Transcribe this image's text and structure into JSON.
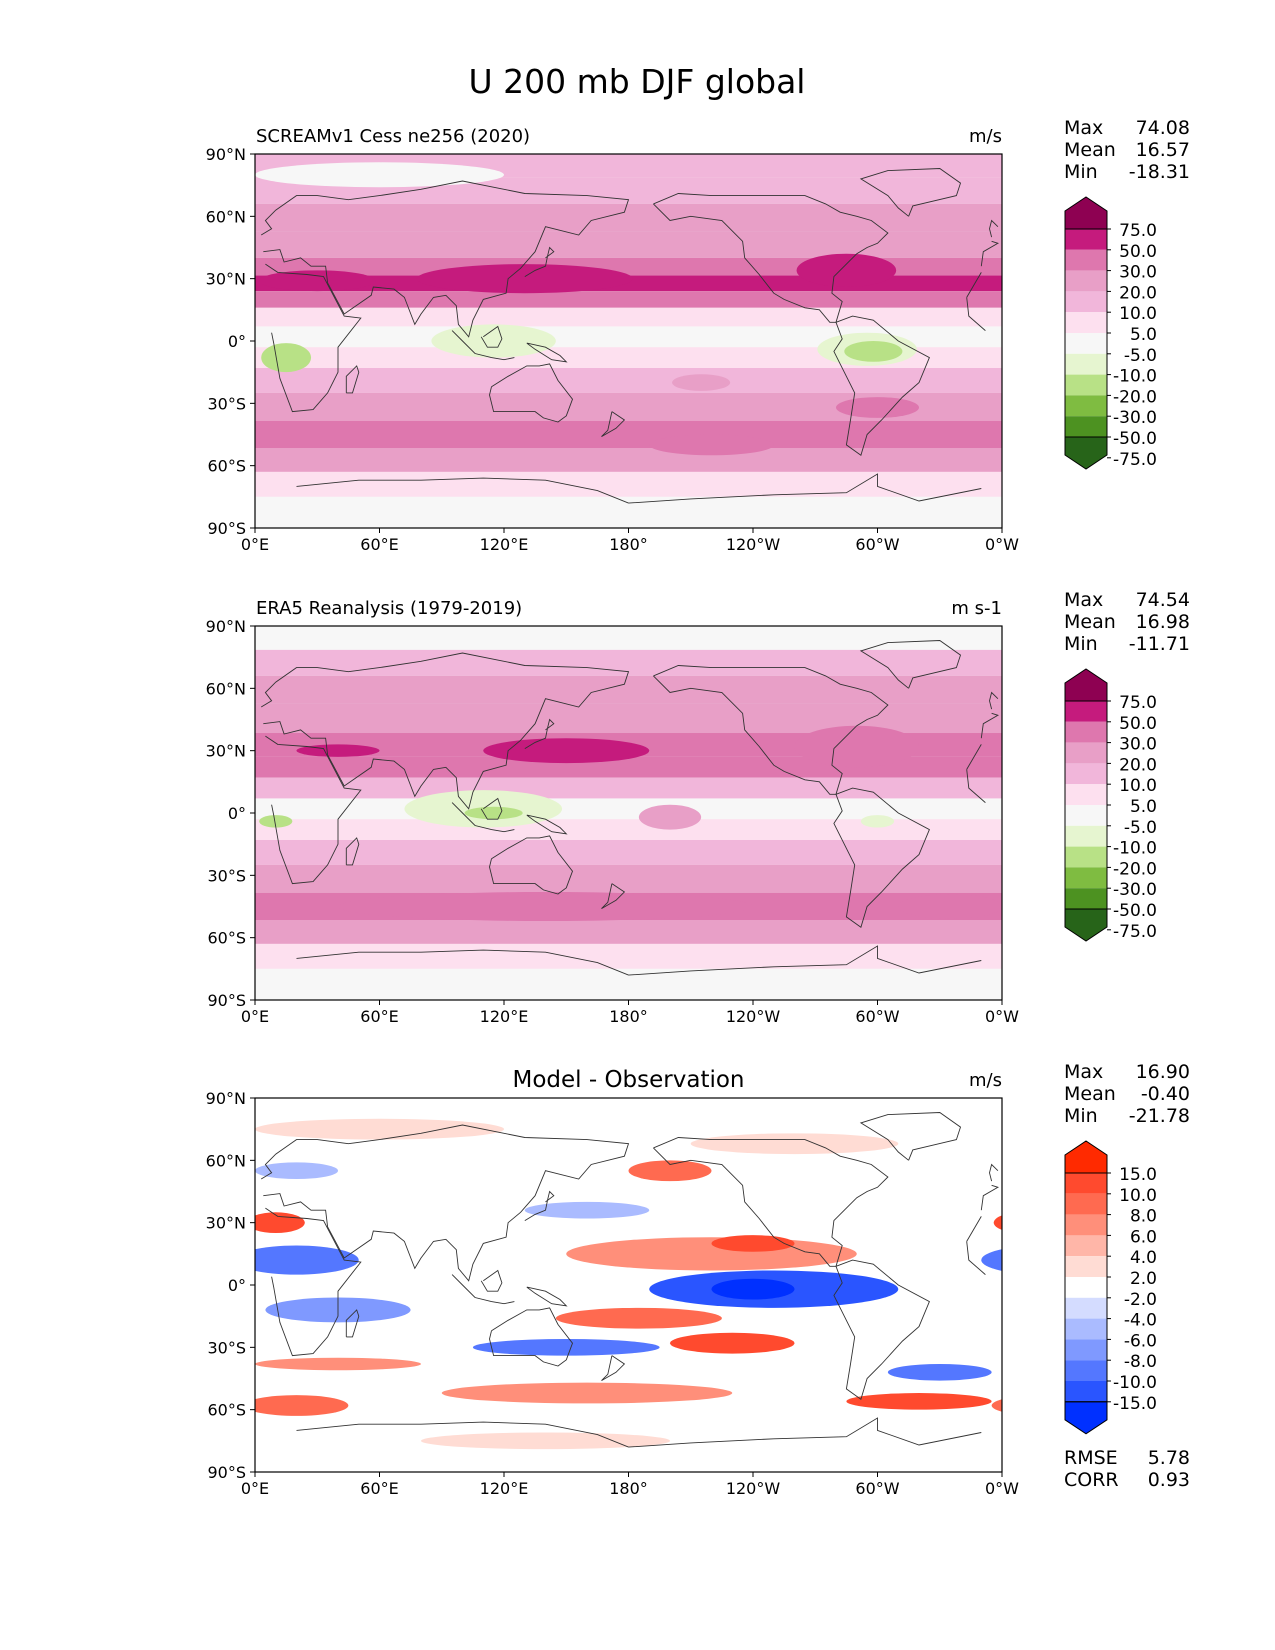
{
  "figure": {
    "title": "U 200 mb DJF global"
  },
  "lat_ticks": [
    "90°N",
    "60°N",
    "30°N",
    "0°",
    "30°S",
    "60°S",
    "90°S"
  ],
  "lon_ticks": [
    "0°E",
    "60°E",
    "120°E",
    "180°",
    "120°W",
    "60°W",
    "0°W"
  ],
  "panels": [
    {
      "id": "model",
      "title_left": "SCREAMv1 Cess ne256 (2020)",
      "title_center": "",
      "units": "m/s",
      "stats": [
        {
          "label": "Max",
          "value": "74.08"
        },
        {
          "label": "Mean",
          "value": "16.57"
        },
        {
          "label": "Min",
          "value": "-18.31"
        }
      ],
      "colorbar": {
        "labels": [
          "75.0",
          "50.0",
          "30.0",
          "20.0",
          "10.0",
          "5.0",
          "-5.0",
          "-10.0",
          "-20.0",
          "-30.0",
          "-50.0",
          "-75.0"
        ],
        "colors": [
          "#8e0152",
          "#c51b7d",
          "#de77ae",
          "#e89fc7",
          "#f1b6da",
          "#fde0ef",
          "#f7f7f7",
          "#e6f5d0",
          "#b8e186",
          "#7fbc41",
          "#4d9221",
          "#276419"
        ]
      },
      "bands": [
        {
          "lat": 85,
          "value": 12,
          "color": "#f1b6da"
        },
        {
          "lat": 72,
          "value": 20,
          "color": "#f1b6da"
        },
        {
          "lat": 60,
          "value": 22,
          "color": "#e89fc7"
        },
        {
          "lat": 45,
          "value": 26,
          "color": "#e89fc7"
        },
        {
          "lat": 35,
          "value": 40,
          "color": "#de77ae"
        },
        {
          "lat": 28,
          "value": 55,
          "color": "#c51b7d"
        },
        {
          "lat": 20,
          "value": 32,
          "color": "#de77ae"
        },
        {
          "lat": 12,
          "value": 12,
          "color": "#fde0ef"
        },
        {
          "lat": 2,
          "value": 2,
          "color": "#f7f7f7"
        },
        {
          "lat": -8,
          "value": 6,
          "color": "#fde0ef"
        },
        {
          "lat": -18,
          "value": 12,
          "color": "#f1b6da"
        },
        {
          "lat": -32,
          "value": 26,
          "color": "#e89fc7"
        },
        {
          "lat": -45,
          "value": 35,
          "color": "#de77ae"
        },
        {
          "lat": -58,
          "value": 25,
          "color": "#e89fc7"
        },
        {
          "lat": -68,
          "value": 12,
          "color": "#fde0ef"
        },
        {
          "lat": -82,
          "value": 2,
          "color": "#f7f7f7"
        }
      ],
      "features": [
        {
          "lon": 130,
          "lat": 30,
          "rx": 52,
          "ry": 7,
          "value": 60,
          "color": "#c51b7d"
        },
        {
          "lon": 30,
          "lat": 29,
          "rx": 28,
          "ry": 5,
          "value": 58,
          "color": "#c51b7d"
        },
        {
          "lon": 285,
          "lat": 34,
          "rx": 24,
          "ry": 8,
          "value": 62,
          "color": "#c51b7d"
        },
        {
          "lon": 115,
          "lat": 0,
          "rx": 30,
          "ry": 8,
          "value": -6,
          "color": "#e6f5d0"
        },
        {
          "lon": 15,
          "lat": -8,
          "rx": 12,
          "ry": 7,
          "value": -12,
          "color": "#b8e186"
        },
        {
          "lon": 295,
          "lat": -4,
          "rx": 24,
          "ry": 8,
          "value": -6,
          "color": "#e6f5d0"
        },
        {
          "lon": 298,
          "lat": -5,
          "rx": 14,
          "ry": 5,
          "value": -12,
          "color": "#b8e186"
        },
        {
          "lon": 215,
          "lat": -20,
          "rx": 14,
          "ry": 4,
          "value": 25,
          "color": "#e89fc7"
        },
        {
          "lon": 300,
          "lat": -32,
          "rx": 20,
          "ry": 5,
          "value": 35,
          "color": "#de77ae"
        },
        {
          "lon": 220,
          "lat": -50,
          "rx": 30,
          "ry": 5,
          "value": 38,
          "color": "#de77ae"
        },
        {
          "lon": 60,
          "lat": 80,
          "rx": 60,
          "ry": 6,
          "value": 2,
          "color": "#f7f7f7"
        }
      ]
    },
    {
      "id": "obs",
      "title_left": "ERA5 Reanalysis (1979-2019)",
      "title_center": "",
      "units": "m s-1",
      "stats": [
        {
          "label": "Max",
          "value": "74.54"
        },
        {
          "label": "Mean",
          "value": "16.98"
        },
        {
          "label": "Min",
          "value": "-11.71"
        }
      ],
      "colorbar": {
        "labels": [
          "75.0",
          "50.0",
          "30.0",
          "20.0",
          "10.0",
          "5.0",
          "-5.0",
          "-10.0",
          "-20.0",
          "-30.0",
          "-50.0",
          "-75.0"
        ],
        "colors": [
          "#8e0152",
          "#c51b7d",
          "#de77ae",
          "#e89fc7",
          "#f1b6da",
          "#fde0ef",
          "#f7f7f7",
          "#e6f5d0",
          "#b8e186",
          "#7fbc41",
          "#4d9221",
          "#276419"
        ]
      },
      "bands": [
        {
          "lat": 85,
          "value": 6,
          "color": "#f7f7f7"
        },
        {
          "lat": 72,
          "value": 12,
          "color": "#f1b6da"
        },
        {
          "lat": 60,
          "value": 22,
          "color": "#e89fc7"
        },
        {
          "lat": 45,
          "value": 25,
          "color": "#e89fc7"
        },
        {
          "lat": 32,
          "value": 42,
          "color": "#de77ae"
        },
        {
          "lat": 22,
          "value": 30,
          "color": "#de77ae"
        },
        {
          "lat": 12,
          "value": 12,
          "color": "#f1b6da"
        },
        {
          "lat": 2,
          "value": 4,
          "color": "#f7f7f7"
        },
        {
          "lat": -8,
          "value": 8,
          "color": "#fde0ef"
        },
        {
          "lat": -18,
          "value": 12,
          "color": "#f1b6da"
        },
        {
          "lat": -32,
          "value": 24,
          "color": "#e89fc7"
        },
        {
          "lat": -45,
          "value": 38,
          "color": "#de77ae"
        },
        {
          "lat": -58,
          "value": 24,
          "color": "#e89fc7"
        },
        {
          "lat": -68,
          "value": 10,
          "color": "#fde0ef"
        },
        {
          "lat": -82,
          "value": 2,
          "color": "#f7f7f7"
        }
      ],
      "features": [
        {
          "lon": 150,
          "lat": 30,
          "rx": 40,
          "ry": 6,
          "value": 58,
          "color": "#c51b7d"
        },
        {
          "lon": 40,
          "lat": 30,
          "rx": 20,
          "ry": 3,
          "value": 55,
          "color": "#c51b7d"
        },
        {
          "lon": 290,
          "lat": 32,
          "rx": 30,
          "ry": 10,
          "value": 40,
          "color": "#de77ae"
        },
        {
          "lon": 110,
          "lat": 2,
          "rx": 38,
          "ry": 9,
          "value": -6,
          "color": "#e6f5d0"
        },
        {
          "lon": 115,
          "lat": 0,
          "rx": 14,
          "ry": 3,
          "value": -12,
          "color": "#b8e186"
        },
        {
          "lon": 10,
          "lat": -4,
          "rx": 8,
          "ry": 3,
          "value": -12,
          "color": "#b8e186"
        },
        {
          "lon": 300,
          "lat": -4,
          "rx": 8,
          "ry": 3,
          "value": -6,
          "color": "#e6f5d0"
        },
        {
          "lon": 200,
          "lat": -2,
          "rx": 15,
          "ry": 6,
          "value": 25,
          "color": "#e89fc7"
        },
        {
          "lon": 140,
          "lat": -45,
          "rx": 100,
          "ry": 7,
          "value": 32,
          "color": "#de77ae"
        },
        {
          "lon": 335,
          "lat": -45,
          "rx": 25,
          "ry": 6,
          "value": 45,
          "color": "#de77ae"
        }
      ]
    },
    {
      "id": "diff",
      "title_left": "",
      "title_center": "Model - Observation",
      "units": "m/s",
      "stats": [
        {
          "label": "Max",
          "value": "16.90"
        },
        {
          "label": "Mean",
          "value": "-0.40"
        },
        {
          "label": "Min",
          "value": "-21.78"
        }
      ],
      "colorbar": {
        "labels": [
          "15.0",
          "10.0",
          "8.0",
          "6.0",
          "4.0",
          "2.0",
          "-2.0",
          "-4.0",
          "-6.0",
          "-8.0",
          "-10.0",
          "-15.0"
        ],
        "colors": [
          "#ff2a00",
          "#ff4a2e",
          "#ff6a50",
          "#ff8f7a",
          "#ffb6a8",
          "#ffdcd4",
          "#ffffff",
          "#d4dcff",
          "#aabbff",
          "#7f99ff",
          "#5477ff",
          "#2a55ff",
          "#0030ff"
        ]
      },
      "bands": [
        {
          "lat": 85,
          "value": 0,
          "color": "#ffffff"
        }
      ],
      "features": [
        {
          "lon": 60,
          "lat": 75,
          "rx": 60,
          "ry": 5,
          "value": 3,
          "color": "#ffdcd4"
        },
        {
          "lon": 260,
          "lat": 68,
          "rx": 50,
          "ry": 5,
          "value": 3,
          "color": "#ffdcd4"
        },
        {
          "lon": 20,
          "lat": 55,
          "rx": 20,
          "ry": 4,
          "value": -6,
          "color": "#aabbff"
        },
        {
          "lon": 160,
          "lat": 36,
          "rx": 30,
          "ry": 4,
          "value": -5,
          "color": "#aabbff"
        },
        {
          "lon": 10,
          "lat": 30,
          "rx": 14,
          "ry": 5,
          "value": 12,
          "color": "#ff4a2e"
        },
        {
          "lon": 200,
          "lat": 55,
          "rx": 20,
          "ry": 5,
          "value": 8,
          "color": "#ff6a50"
        },
        {
          "lon": 220,
          "lat": 15,
          "rx": 70,
          "ry": 8,
          "value": 7,
          "color": "#ff8f7a"
        },
        {
          "lon": 240,
          "lat": 20,
          "rx": 20,
          "ry": 4,
          "value": 12,
          "color": "#ff4a2e"
        },
        {
          "lon": 20,
          "lat": 12,
          "rx": 30,
          "ry": 7,
          "value": -10,
          "color": "#5477ff"
        },
        {
          "lon": 250,
          "lat": -2,
          "rx": 60,
          "ry": 9,
          "value": -12,
          "color": "#2a55ff"
        },
        {
          "lon": 240,
          "lat": -2,
          "rx": 20,
          "ry": 5,
          "value": -18,
          "color": "#0030ff"
        },
        {
          "lon": 40,
          "lat": -12,
          "rx": 35,
          "ry": 6,
          "value": -8,
          "color": "#7f99ff"
        },
        {
          "lon": 185,
          "lat": -16,
          "rx": 40,
          "ry": 5,
          "value": 8,
          "color": "#ff6a50"
        },
        {
          "lon": 230,
          "lat": -28,
          "rx": 30,
          "ry": 5,
          "value": 10,
          "color": "#ff4a2e"
        },
        {
          "lon": 150,
          "lat": -30,
          "rx": 45,
          "ry": 4,
          "value": -10,
          "color": "#5477ff"
        },
        {
          "lon": 40,
          "lat": -38,
          "rx": 40,
          "ry": 3,
          "value": 5,
          "color": "#ff8f7a"
        },
        {
          "lon": 160,
          "lat": -52,
          "rx": 70,
          "ry": 5,
          "value": 6,
          "color": "#ff8f7a"
        },
        {
          "lon": 330,
          "lat": -42,
          "rx": 25,
          "ry": 4,
          "value": -10,
          "color": "#5477ff"
        },
        {
          "lon": 320,
          "lat": -56,
          "rx": 35,
          "ry": 4,
          "value": 10,
          "color": "#ff4a2e"
        },
        {
          "lon": 20,
          "lat": -58,
          "rx": 25,
          "ry": 5,
          "value": 8,
          "color": "#ff6a50"
        },
        {
          "lon": 140,
          "lat": -75,
          "rx": 60,
          "ry": 4,
          "value": 2,
          "color": "#ffdcd4"
        }
      ],
      "extra_stats": [
        {
          "label": "RMSE",
          "value": "5.78"
        },
        {
          "label": "CORR",
          "value": "0.93"
        }
      ]
    }
  ]
}
